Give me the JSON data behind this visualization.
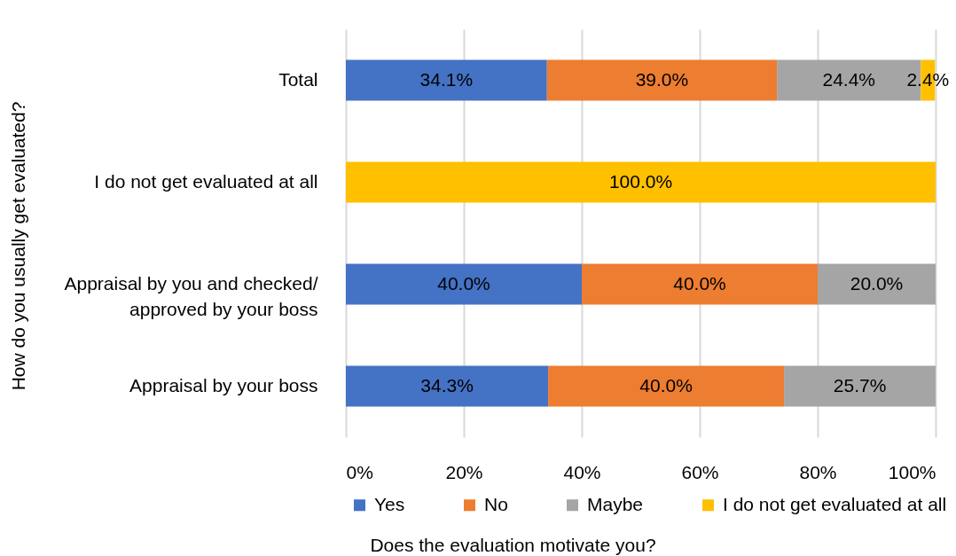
{
  "chart_data": {
    "type": "bar",
    "orientation": "horizontal",
    "stacked": true,
    "categories": [
      "Total",
      "I do not get evaluated at all",
      "Appraisal by you and checked/ approved by your boss",
      "Appraisal by your boss"
    ],
    "series": [
      {
        "name": "Yes",
        "color": "#4472c4",
        "values": [
          34.1,
          null,
          40.0,
          34.3
        ],
        "value_labels": [
          "34.1%",
          null,
          "40.0%",
          "34.3%"
        ]
      },
      {
        "name": "No",
        "color": "#ed7d31",
        "values": [
          39.0,
          null,
          40.0,
          40.0
        ],
        "value_labels": [
          "39.0%",
          null,
          "40.0%",
          "40.0%"
        ]
      },
      {
        "name": "Maybe",
        "color": "#a5a5a5",
        "values": [
          24.4,
          null,
          20.0,
          25.7
        ],
        "value_labels": [
          "24.4%",
          null,
          "20.0%",
          "25.7%"
        ]
      },
      {
        "name": "I do not get evaluated at all",
        "color": "#ffc000",
        "values": [
          2.4,
          100.0,
          null,
          null
        ],
        "value_labels": [
          "2.4%",
          "100.0%",
          null,
          null
        ]
      }
    ],
    "xlim": [
      0,
      100
    ],
    "xticks": [
      {
        "value": 0,
        "label": "0%"
      },
      {
        "value": 20,
        "label": "20%"
      },
      {
        "value": 40,
        "label": "40%"
      },
      {
        "value": 60,
        "label": "60%"
      },
      {
        "value": 80,
        "label": "80%"
      },
      {
        "value": 100,
        "label": "100%"
      }
    ],
    "xlabel": "Does the evaluation motivate you?",
    "ylabel": "How do you usually get evaluated?",
    "grid": "x",
    "legend": "bottom"
  }
}
